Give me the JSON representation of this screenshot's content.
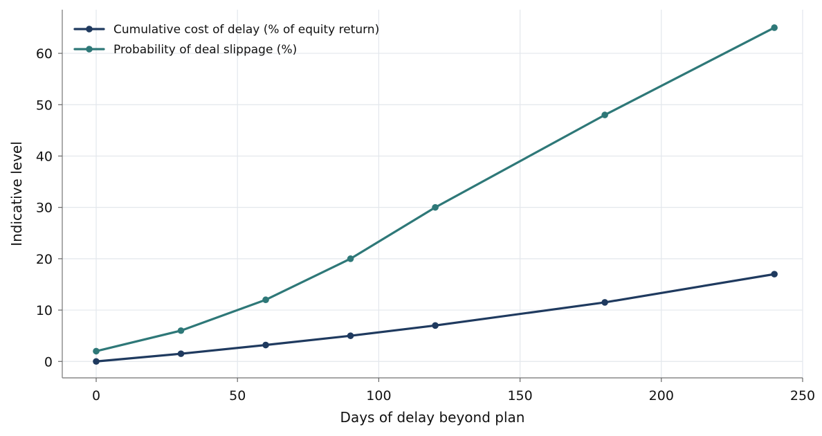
{
  "chart_data": {
    "type": "line",
    "title": "",
    "xlabel": "Days of delay beyond plan",
    "ylabel": "Indicative level",
    "xlim": [
      -12,
      250
    ],
    "ylim": [
      -3.2,
      68.5
    ],
    "xticks": [
      0,
      50,
      100,
      150,
      200,
      250
    ],
    "yticks": [
      0,
      10,
      20,
      30,
      40,
      50,
      60
    ],
    "grid": true,
    "legend_position": "top-left",
    "x": [
      0,
      30,
      60,
      90,
      120,
      180,
      240
    ],
    "series": [
      {
        "name": "Cumulative cost of delay (% of equity return)",
        "color": "#1f3a5f",
        "values": [
          0,
          1.5,
          3.2,
          5.0,
          7.0,
          11.5,
          17.0
        ]
      },
      {
        "name": "Probability of deal slippage (%)",
        "color": "#2e7878",
        "values": [
          2,
          6,
          12,
          20,
          30,
          48,
          65
        ]
      }
    ]
  }
}
